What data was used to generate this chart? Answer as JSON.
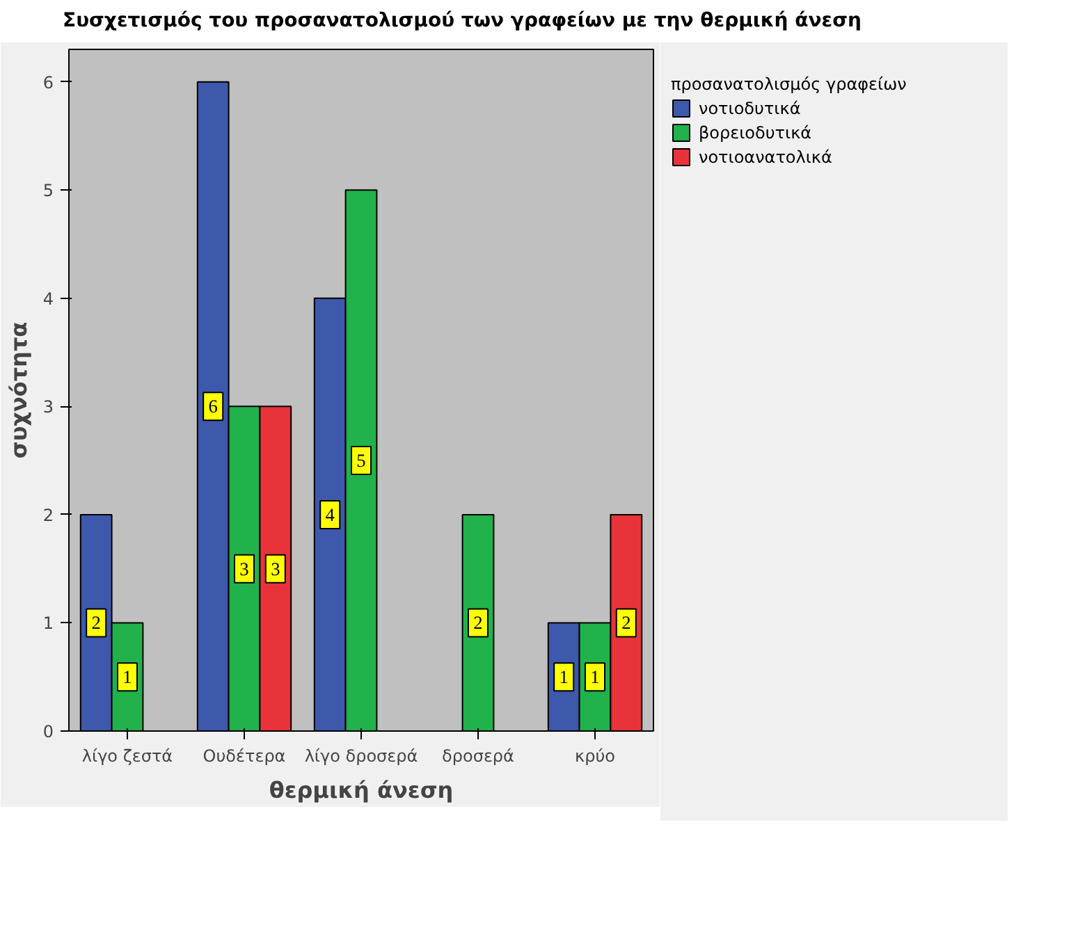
{
  "chart_data": {
    "type": "bar",
    "title": "Συσχετισμός του προσανατολισμού των γραφείων με την θερμική άνεση",
    "xlabel": "θερμική άνεση",
    "ylabel": "συχνότητα",
    "legend_title": "προσανατολισμός γραφείων",
    "categories": [
      "λίγο ζεστά",
      "Ουδέτερα",
      "λίγο δροσερά",
      "δροσερά",
      "κρύο"
    ],
    "series": [
      {
        "name": "νοτιοδυτικά",
        "color": "#3e58ac",
        "values": [
          2,
          6,
          4,
          null,
          1
        ]
      },
      {
        "name": "βορειοδυτικά",
        "color": "#21b24b",
        "values": [
          1,
          3,
          5,
          2,
          1
        ]
      },
      {
        "name": "νοτιοανατολικά",
        "color": "#e8333b",
        "values": [
          null,
          3,
          null,
          null,
          2
        ]
      }
    ],
    "ylim": [
      0,
      6.3
    ],
    "yticks": [
      0,
      1,
      2,
      3,
      4,
      5,
      6
    ],
    "grid": false,
    "legend": "right",
    "data_labels": true
  }
}
